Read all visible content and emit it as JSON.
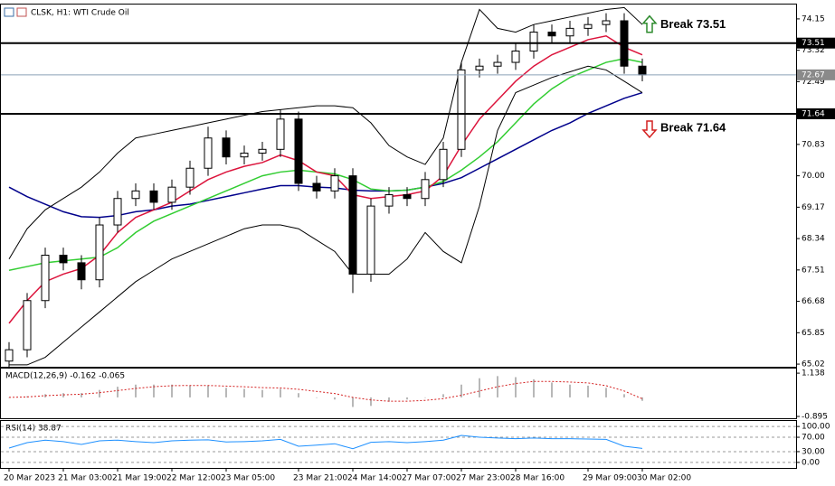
{
  "chart_data": [
    {
      "type": "candlestick",
      "title": "CLSK, H1: WTI Crude Oil",
      "categories": [
        "20 Mar 2023",
        null,
        null,
        "21 Mar 03:00",
        null,
        null,
        "21 Mar 19:00",
        null,
        null,
        "22 Mar 12:00",
        null,
        null,
        "23 Mar 05:00",
        null,
        null,
        null,
        "23 Mar 21:00",
        null,
        null,
        "24 Mar 14:00",
        null,
        null,
        "27 Mar 07:00",
        null,
        null,
        "27 Mar 23:00",
        null,
        null,
        "28 Mar 16:00",
        null,
        null,
        null,
        "29 Mar 09:00",
        null,
        null,
        "30 Mar 02:00"
      ],
      "open": [
        65.1,
        65.4,
        66.7,
        67.9,
        67.7,
        67.25,
        68.7,
        69.4,
        69.6,
        69.3,
        69.7,
        70.2,
        71.0,
        70.5,
        70.6,
        70.7,
        71.5,
        69.8,
        69.6,
        70.0,
        67.4,
        69.2,
        69.5,
        69.4,
        69.9,
        70.7,
        72.8,
        72.9,
        73.0,
        73.3,
        73.8,
        73.7,
        73.9,
        74.0,
        74.1,
        72.9
      ],
      "high": [
        65.6,
        66.9,
        68.1,
        68.1,
        67.9,
        68.9,
        69.6,
        69.8,
        69.8,
        69.9,
        70.4,
        71.3,
        71.2,
        70.8,
        70.9,
        71.75,
        71.7,
        70.0,
        70.2,
        70.2,
        69.4,
        69.7,
        69.7,
        70.1,
        70.9,
        73.0,
        73.1,
        73.2,
        73.5,
        74.0,
        74.0,
        74.1,
        74.2,
        74.3,
        74.3,
        73.1
      ],
      "low": [
        64.9,
        65.2,
        66.5,
        67.5,
        67.0,
        67.05,
        68.5,
        69.2,
        69.1,
        69.1,
        69.5,
        70.0,
        70.3,
        70.3,
        70.4,
        70.5,
        69.6,
        69.4,
        69.4,
        66.9,
        67.2,
        69.0,
        69.2,
        69.2,
        69.7,
        70.5,
        72.6,
        72.7,
        72.8,
        73.1,
        73.5,
        73.5,
        73.7,
        73.8,
        72.7,
        72.5
      ],
      "close": [
        65.4,
        66.7,
        67.9,
        67.7,
        67.25,
        68.7,
        69.4,
        69.6,
        69.3,
        69.7,
        70.2,
        71.0,
        70.5,
        70.6,
        70.7,
        71.5,
        69.8,
        69.6,
        70.0,
        67.4,
        69.2,
        69.5,
        69.4,
        69.9,
        70.7,
        72.8,
        72.9,
        73.0,
        73.3,
        73.8,
        73.7,
        73.9,
        74.0,
        74.1,
        72.9,
        72.67
      ],
      "lines": [
        {
          "color": "#00008b",
          "values": [
            69.7,
            69.45,
            69.25,
            69.05,
            68.92,
            68.9,
            68.95,
            69.05,
            69.1,
            69.2,
            69.25,
            69.35,
            69.45,
            69.55,
            69.65,
            69.74,
            69.74,
            69.7,
            69.68,
            69.62,
            69.6,
            69.6,
            69.62,
            69.7,
            69.8,
            69.95,
            70.2,
            70.45,
            70.7,
            70.95,
            71.2,
            71.4,
            71.65,
            71.85,
            72.05,
            72.2
          ]
        },
        {
          "color": "#32cd32",
          "values": [
            67.5,
            67.6,
            67.7,
            67.75,
            67.8,
            67.85,
            68.1,
            68.5,
            68.8,
            69.0,
            69.2,
            69.4,
            69.6,
            69.8,
            70.0,
            70.1,
            70.15,
            70.1,
            70.05,
            69.9,
            69.65,
            69.6,
            69.62,
            69.7,
            69.85,
            70.15,
            70.5,
            70.9,
            71.4,
            71.9,
            72.3,
            72.6,
            72.8,
            73.0,
            73.1,
            73.0
          ]
        },
        {
          "color": "#dc143c",
          "values": [
            66.1,
            66.7,
            67.2,
            67.4,
            67.55,
            67.9,
            68.5,
            68.9,
            69.1,
            69.3,
            69.6,
            69.9,
            70.1,
            70.25,
            70.35,
            70.55,
            70.4,
            70.1,
            70.0,
            69.5,
            69.4,
            69.45,
            69.5,
            69.6,
            70.0,
            70.8,
            71.5,
            72.0,
            72.5,
            72.9,
            73.2,
            73.4,
            73.6,
            73.7,
            73.4,
            73.2
          ]
        },
        {
          "color": "#000000",
          "values": [
            67.8,
            68.6,
            69.1,
            69.4,
            69.7,
            70.1,
            70.6,
            71.0,
            71.1,
            71.2,
            71.3,
            71.4,
            71.5,
            71.6,
            71.7,
            71.75,
            71.8,
            71.85,
            71.85,
            71.8,
            71.4,
            70.8,
            70.5,
            70.3,
            71.0,
            73.0,
            74.4,
            73.9,
            73.8,
            74.0,
            74.1,
            74.2,
            74.3,
            74.4,
            74.45,
            74.0
          ]
        },
        {
          "color": "#000000",
          "values": [
            65.0,
            65.0,
            65.2,
            65.6,
            66.0,
            66.4,
            66.8,
            67.2,
            67.5,
            67.8,
            68.0,
            68.2,
            68.4,
            68.6,
            68.7,
            68.7,
            68.6,
            68.3,
            68.0,
            67.4,
            67.4,
            67.4,
            67.8,
            68.5,
            68.0,
            67.7,
            69.2,
            71.2,
            72.2,
            72.4,
            72.6,
            72.75,
            72.9,
            72.8,
            72.5,
            72.2
          ]
        }
      ],
      "levels": [
        {
          "value": 73.51,
          "label": "Break 73.51",
          "color": "#2e8b2e",
          "direction": "up"
        },
        {
          "value": 71.64,
          "label": "Break 71.64",
          "color": "#d42020",
          "direction": "down"
        }
      ],
      "last_price": 72.67,
      "ylim": [
        64.95,
        74.53
      ],
      "yticks": [
        74.15,
        73.32,
        72.49,
        {
          "value": 70.83,
          "label": "70.83"
        },
        {
          "value": 70,
          "label": "70.00"
        },
        69.17,
        68.34,
        67.51,
        66.68,
        65.85,
        65.02
      ]
    },
    {
      "type": "macd",
      "title": "MACD(12,26,9) -0.162 -0.065",
      "values": [
        0.0,
        0.05,
        0.15,
        0.2,
        0.2,
        0.35,
        0.5,
        0.6,
        0.6,
        0.6,
        0.55,
        0.55,
        0.45,
        0.4,
        0.35,
        0.4,
        0.2,
        0.0,
        -0.1,
        -0.45,
        -0.4,
        -0.2,
        -0.1,
        0.0,
        0.15,
        0.6,
        0.9,
        1.0,
        0.95,
        0.85,
        0.7,
        0.6,
        0.55,
        0.45,
        0.15,
        -0.162
      ],
      "signal": [
        0.0,
        0.02,
        0.08,
        0.12,
        0.15,
        0.22,
        0.32,
        0.42,
        0.5,
        0.55,
        0.56,
        0.56,
        0.53,
        0.5,
        0.46,
        0.44,
        0.38,
        0.28,
        0.18,
        0.0,
        -0.12,
        -0.18,
        -0.18,
        -0.14,
        -0.06,
        0.1,
        0.3,
        0.5,
        0.65,
        0.75,
        0.75,
        0.72,
        0.68,
        0.55,
        0.3,
        -0.065
      ],
      "color": "#b8b8b8",
      "signal_color": "#d42020",
      "ylim": [
        -0.98,
        1.354
      ],
      "yticks": [
        1.138,
        -0.895
      ]
    },
    {
      "type": "rsi",
      "title": "RSI(14) 38.87",
      "values": [
        40,
        55,
        62,
        58,
        50,
        60,
        62,
        58,
        55,
        60,
        62,
        63,
        57,
        58,
        60,
        64,
        45,
        48,
        52,
        38,
        56,
        58,
        55,
        58,
        62,
        75,
        70,
        68,
        66,
        68,
        66,
        66,
        65,
        64,
        45,
        38.87
      ],
      "color": "#1e90ff",
      "ylim": [
        -15.4,
        115.4
      ],
      "yticks": [
        {
          "value": 100,
          "label": "100.00"
        },
        {
          "value": 70,
          "label": "70.00"
        },
        {
          "value": 30,
          "label": "30.00"
        },
        {
          "value": 0,
          "label": "0.00"
        }
      ]
    }
  ]
}
